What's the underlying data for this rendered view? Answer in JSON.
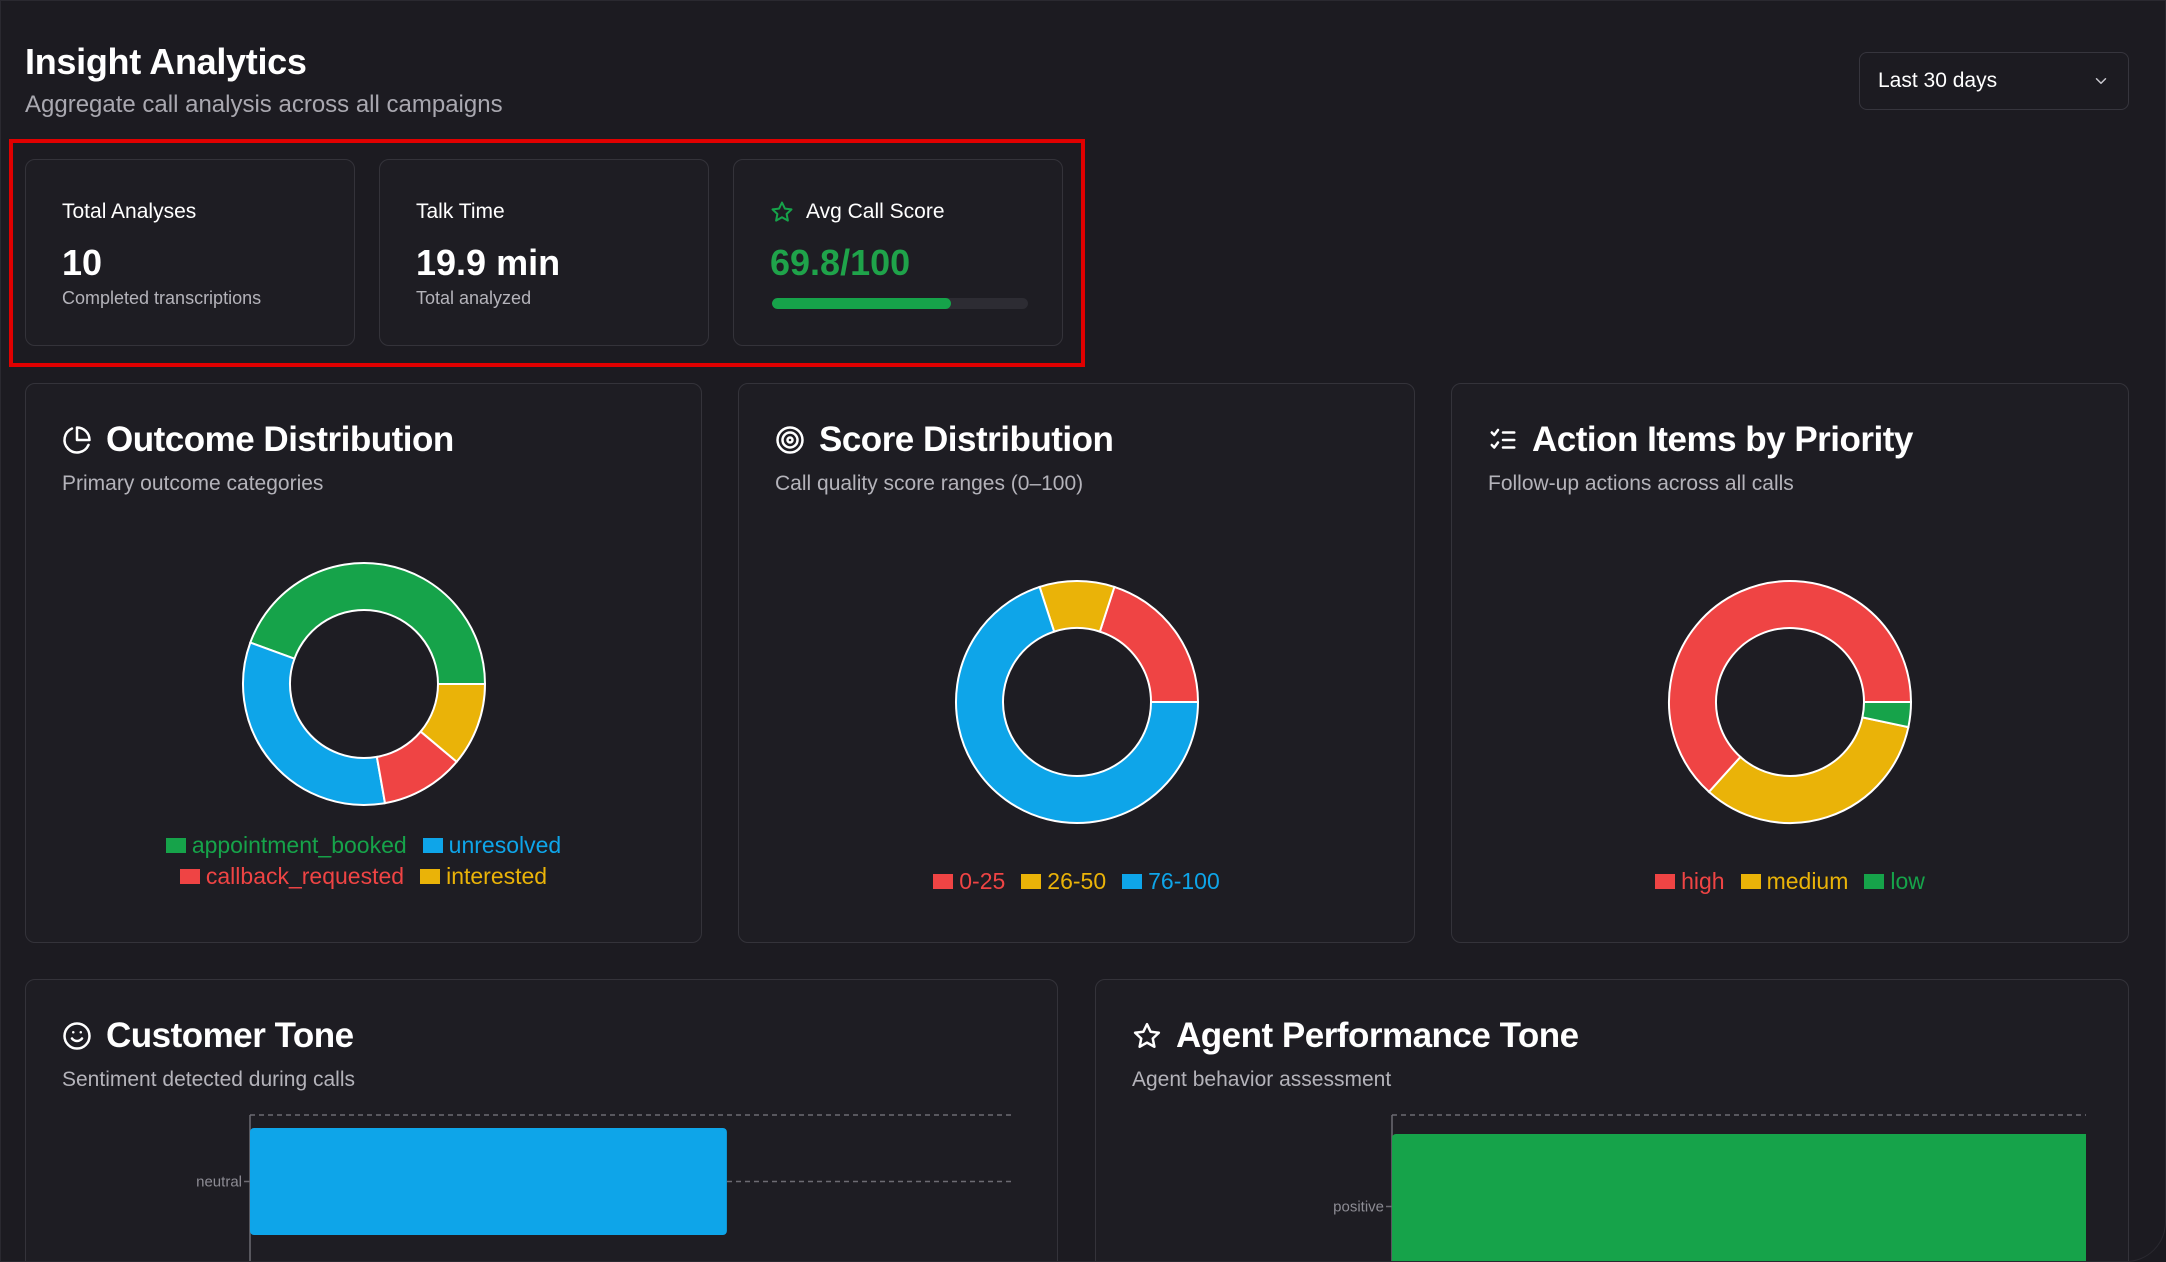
{
  "header": {
    "title": "Insight Analytics",
    "subtitle": "Aggregate call analysis across all campaigns",
    "date_range": "Last 30 days"
  },
  "stats": {
    "total_analyses": {
      "label": "Total Analyses",
      "value": "10",
      "sub": "Completed transcriptions"
    },
    "talk_time": {
      "label": "Talk Time",
      "value": "19.9 min",
      "sub": "Total analyzed"
    },
    "avg_score": {
      "label": "Avg Call Score",
      "value": "69.8/100",
      "progress": 0.698,
      "icon": "star-icon"
    }
  },
  "colors": {
    "green": "#16a34a",
    "blue": "#0ea5e9",
    "red": "#ef4444",
    "yellow": "#eab308"
  },
  "panels": {
    "outcome": {
      "title": "Outcome Distribution",
      "desc": "Primary outcome categories",
      "icon": "pie-chart-icon"
    },
    "score": {
      "title": "Score Distribution",
      "desc": "Call quality score ranges (0–100)",
      "icon": "target-icon"
    },
    "actions": {
      "title": "Action Items by Priority",
      "desc": "Follow-up actions across all calls",
      "icon": "list-checks-icon"
    },
    "customer_tone": {
      "title": "Customer Tone",
      "desc": "Sentiment detected during calls",
      "icon": "smile-icon"
    },
    "agent_tone": {
      "title": "Agent Performance Tone",
      "desc": "Agent behavior assessment",
      "icon": "star-icon"
    }
  },
  "chart_data": [
    {
      "id": "outcome",
      "type": "pie",
      "categories": [
        "appointment_booked",
        "interested",
        "callback_requested",
        "unresolved"
      ],
      "values": [
        4,
        1,
        1,
        3
      ],
      "colors": [
        "#16a34a",
        "#eab308",
        "#ef4444",
        "#0ea5e9"
      ],
      "legend_order": [
        "appointment_booked",
        "unresolved",
        "callback_requested",
        "interested"
      ]
    },
    {
      "id": "score",
      "type": "pie",
      "categories": [
        "0-25",
        "26-50",
        "76-100"
      ],
      "values": [
        2,
        1,
        7
      ],
      "colors": [
        "#ef4444",
        "#eab308",
        "#0ea5e9"
      ]
    },
    {
      "id": "actions",
      "type": "pie",
      "categories": [
        "high",
        "low",
        "medium"
      ],
      "values": [
        19,
        1,
        10
      ],
      "colors": [
        "#ef4444",
        "#16a34a",
        "#eab308"
      ],
      "legend_order": [
        "high",
        "medium",
        "low"
      ]
    },
    {
      "id": "customer_tone",
      "type": "bar",
      "orientation": "horizontal",
      "categories": [
        "neutral"
      ],
      "values": [
        10
      ],
      "xlim": [
        0,
        16
      ],
      "color": "#0ea5e9"
    },
    {
      "id": "agent_tone",
      "type": "bar",
      "orientation": "horizontal",
      "categories": [
        "positive"
      ],
      "values": [
        10
      ],
      "xlim": [
        0,
        10
      ],
      "color": "#16a34a"
    }
  ]
}
